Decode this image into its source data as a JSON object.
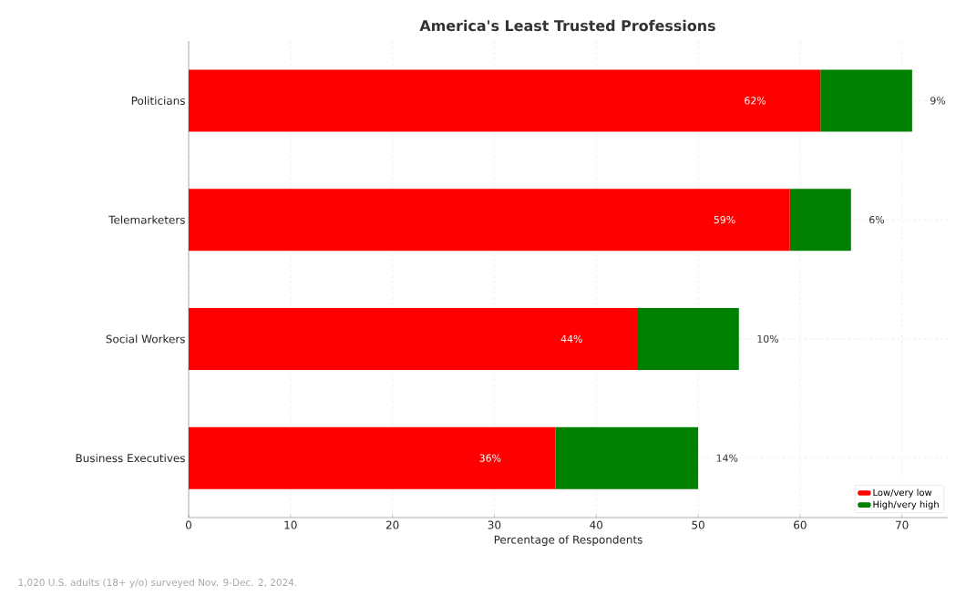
{
  "chart_data": {
    "type": "bar",
    "orientation": "horizontal",
    "stacked": true,
    "title": "America's Least Trusted Professions",
    "xlabel": "Percentage of Respondents",
    "categories": [
      "Politicians",
      "Telemarketers",
      "Social Workers",
      "Business Executives"
    ],
    "series": [
      {
        "name": "Low/very low",
        "color": "#ff0000",
        "values": [
          62,
          59,
          44,
          36
        ],
        "value_labels": [
          "62%",
          "59%",
          "44%",
          "36%"
        ]
      },
      {
        "name": "High/very high",
        "color": "#008000",
        "values": [
          9,
          6,
          10,
          14
        ],
        "value_labels": [
          "9%",
          "6%",
          "10%",
          "14%"
        ]
      }
    ],
    "xlim": [
      0,
      74.5
    ],
    "xticks": [
      0,
      10,
      20,
      30,
      40,
      50,
      60,
      70
    ],
    "grid": true,
    "legend": "bottom right",
    "annotations": [
      "1,020 U.S. adults (18+ y/o) surveyed Nov. 9-Dec. 2, 2024."
    ]
  }
}
